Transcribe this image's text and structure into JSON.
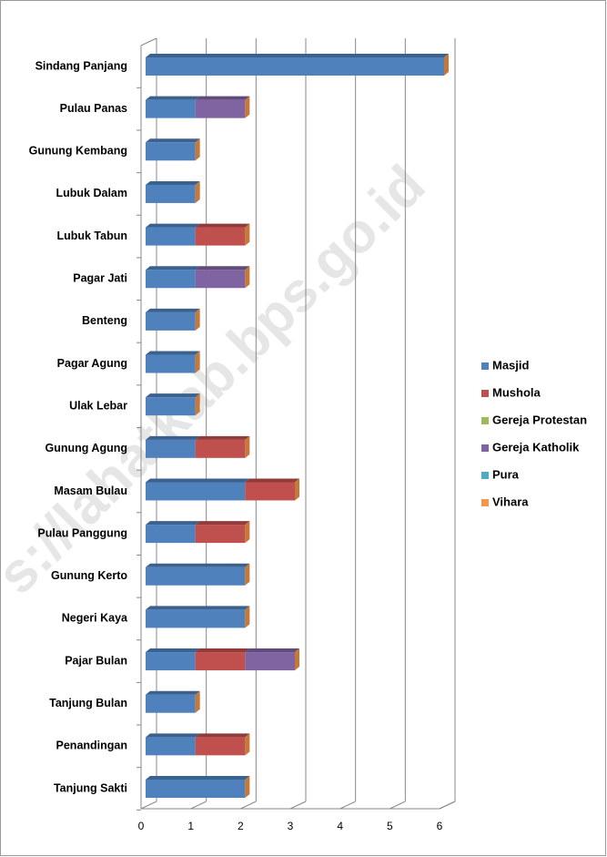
{
  "chart_data": {
    "type": "bar",
    "orientation": "horizontal",
    "stacked": true,
    "watermark": "s://lahatkab.bps.go.id",
    "categories": [
      "Sindang Panjang",
      "Pulau Panas",
      "Gunung Kembang",
      "Lubuk Dalam",
      "Lubuk Tabun",
      "Pagar Jati",
      "Benteng",
      "Pagar Agung",
      "Ulak Lebar",
      "Gunung Agung",
      "Masam Bulau",
      "Pulau Panggung",
      "Gunung Kerto",
      "Negeri Kaya",
      "Pajar Bulan",
      "Tanjung Bulan",
      "Penandingan",
      "Tanjung Sakti"
    ],
    "series": [
      {
        "name": "Masjid",
        "color": "#4f81bd",
        "values": [
          6,
          1,
          1,
          1,
          1,
          1,
          1,
          1,
          1,
          1,
          2,
          1,
          2,
          2,
          1,
          1,
          1,
          2
        ]
      },
      {
        "name": "Mushola",
        "color": "#c0504d",
        "values": [
          0,
          0,
          0,
          0,
          1,
          0,
          0,
          0,
          0,
          1,
          1,
          1,
          0,
          0,
          1,
          0,
          1,
          0
        ]
      },
      {
        "name": "Gereja Protestan",
        "color": "#9bbb59",
        "values": [
          0,
          0,
          0,
          0,
          0,
          0,
          0,
          0,
          0,
          0,
          0,
          0,
          0,
          0,
          0,
          0,
          0,
          0
        ]
      },
      {
        "name": "Gereja Katholik",
        "color": "#8064a2",
        "values": [
          0,
          1,
          0,
          0,
          0,
          1,
          0,
          0,
          0,
          0,
          0,
          0,
          0,
          0,
          1,
          0,
          0,
          0
        ]
      },
      {
        "name": "Pura",
        "color": "#4bacc6",
        "values": [
          0,
          0,
          0,
          0,
          0,
          0,
          0,
          0,
          0,
          0,
          0,
          0,
          0,
          0,
          0,
          0,
          0,
          0
        ]
      },
      {
        "name": "Vihara",
        "color": "#f79646",
        "values": [
          0,
          0,
          0,
          0,
          0,
          0,
          0,
          0,
          0,
          0,
          0,
          0,
          0,
          0,
          0,
          0,
          0,
          0
        ]
      }
    ],
    "xlim": [
      0,
      6
    ],
    "xticks": [
      0,
      1,
      2,
      3,
      4,
      5,
      6
    ],
    "grid": true,
    "legend": "right"
  }
}
